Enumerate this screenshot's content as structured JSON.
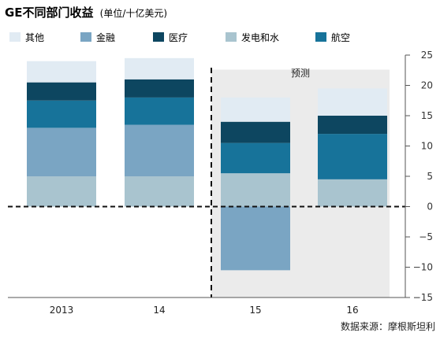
{
  "chart_data": {
    "type": "bar",
    "stacked": true,
    "title": "GE不同部门收益",
    "unit": "(单位/十亿美元)",
    "categories": [
      "2013",
      "14",
      "15",
      "16"
    ],
    "series": [
      {
        "name": "发电和水",
        "color": "#a9c4cf",
        "values": [
          5.0,
          5.0,
          5.5,
          4.5
        ]
      },
      {
        "name": "金融",
        "color": "#7aa5c3",
        "values": [
          8.0,
          8.5,
          -10.5,
          0
        ]
      },
      {
        "name": "航空",
        "color": "#17739a",
        "values": [
          4.5,
          4.5,
          5.0,
          7.5
        ]
      },
      {
        "name": "医疗",
        "color": "#0d4660",
        "values": [
          3.0,
          3.0,
          3.5,
          3.0
        ]
      },
      {
        "name": "其他",
        "color": "#e1ebf3",
        "values": [
          3.5,
          3.5,
          4.0,
          4.5
        ]
      }
    ],
    "legend_order": [
      "其他",
      "金融",
      "医疗",
      "发电和水",
      "航空"
    ],
    "ylim": [
      -15,
      25
    ],
    "yticks": [
      25,
      20,
      15,
      10,
      5,
      0,
      -5,
      -10,
      -15
    ],
    "forecast_label": "预测",
    "forecast_categories": [
      "15",
      "16"
    ],
    "source": "数据来源：摩根斯坦利"
  }
}
